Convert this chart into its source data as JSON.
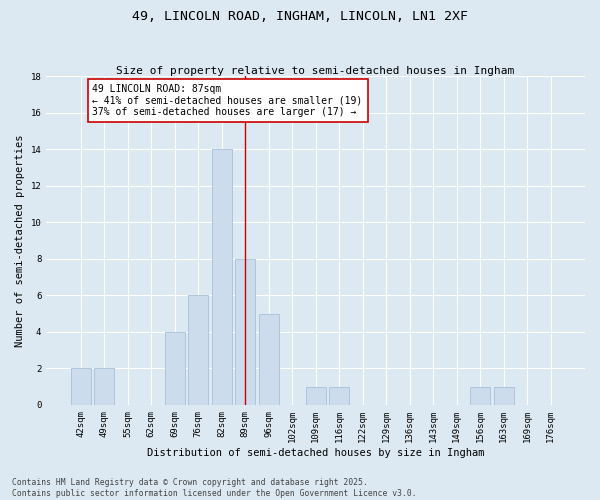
{
  "title": "49, LINCOLN ROAD, INGHAM, LINCOLN, LN1 2XF",
  "subtitle": "Size of property relative to semi-detached houses in Ingham",
  "xlabel": "Distribution of semi-detached houses by size in Ingham",
  "ylabel": "Number of semi-detached properties",
  "categories": [
    "42sqm",
    "49sqm",
    "55sqm",
    "62sqm",
    "69sqm",
    "76sqm",
    "82sqm",
    "89sqm",
    "96sqm",
    "102sqm",
    "109sqm",
    "116sqm",
    "122sqm",
    "129sqm",
    "136sqm",
    "143sqm",
    "149sqm",
    "156sqm",
    "163sqm",
    "169sqm",
    "176sqm"
  ],
  "values": [
    2,
    2,
    0,
    0,
    4,
    6,
    14,
    8,
    5,
    0,
    1,
    1,
    0,
    0,
    0,
    0,
    0,
    1,
    1,
    0,
    0
  ],
  "bar_color": "#ccdcec",
  "bar_edge_color": "#a8c0d8",
  "background_color": "#dce9f2",
  "grid_color": "#ffffff",
  "vline_x_index": 7,
  "vline_color": "#cc0000",
  "annotation_text": "49 LINCOLN ROAD: 87sqm\n← 41% of semi-detached houses are smaller (19)\n37% of semi-detached houses are larger (17) →",
  "annotation_box_facecolor": "#ffffff",
  "annotation_box_edgecolor": "#cc0000",
  "footer_text": "Contains HM Land Registry data © Crown copyright and database right 2025.\nContains public sector information licensed under the Open Government Licence v3.0.",
  "ylim": [
    0,
    18
  ],
  "yticks": [
    0,
    2,
    4,
    6,
    8,
    10,
    12,
    14,
    16,
    18
  ],
  "title_fontsize": 9.5,
  "subtitle_fontsize": 8.0,
  "axis_label_fontsize": 7.5,
  "tick_fontsize": 6.5,
  "footer_fontsize": 5.8,
  "annotation_fontsize": 7.0
}
